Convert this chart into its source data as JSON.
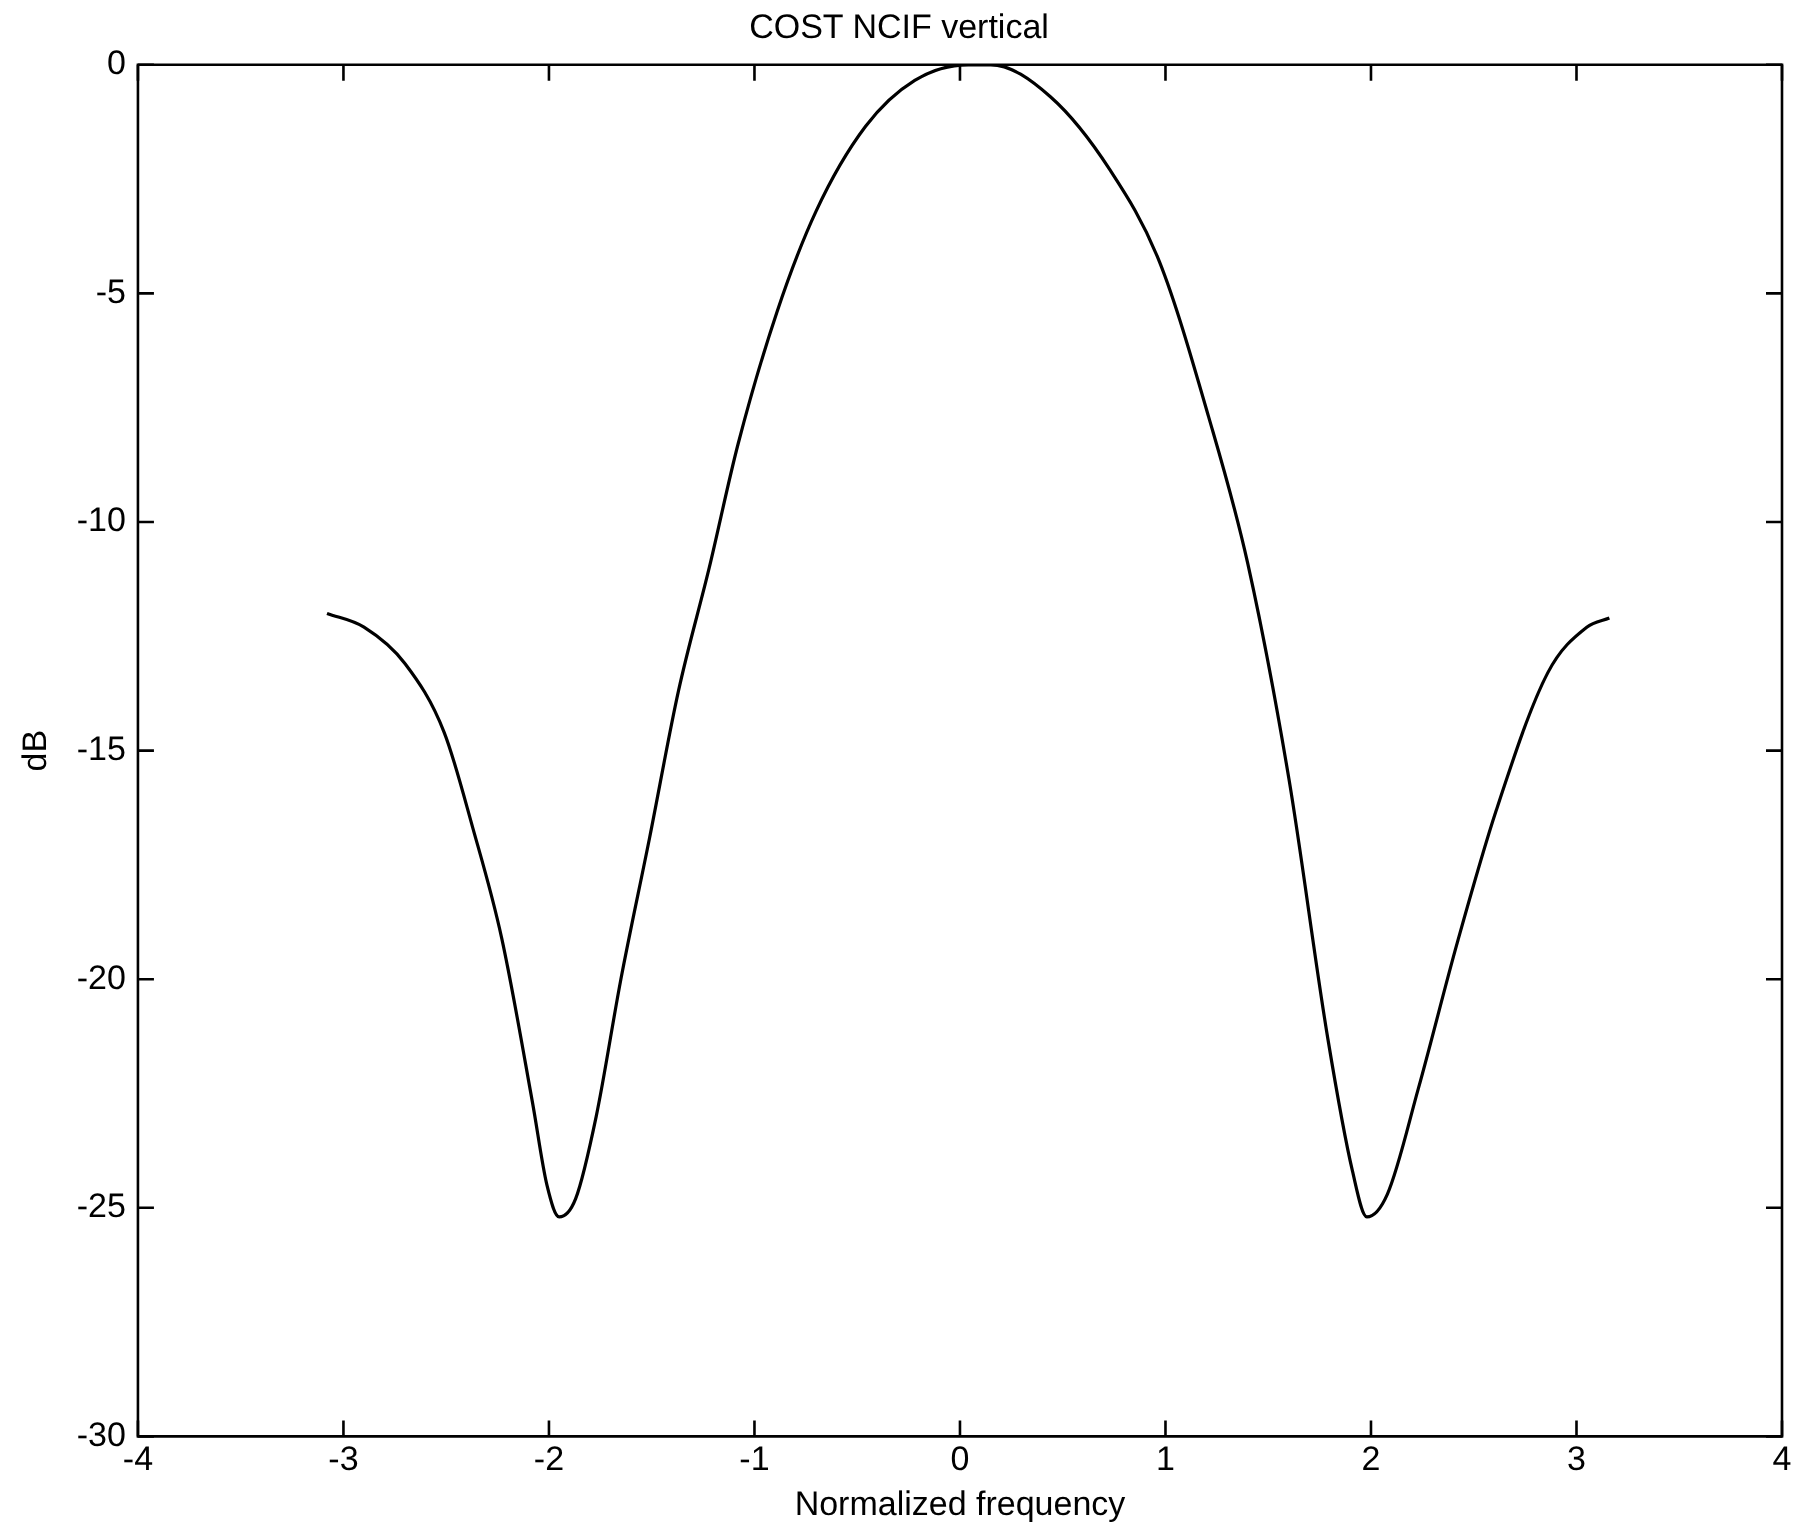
{
  "chart_data": {
    "type": "line",
    "title": "COST NCIF vertical",
    "xlabel": "Normalized frequency",
    "ylabel": "dB",
    "xlim": [
      -4,
      4
    ],
    "xticks": [
      -4,
      -3,
      -2,
      -1,
      0,
      1,
      2,
      3,
      4
    ],
    "ylim": [
      -30,
      0
    ],
    "yticks": [
      -30,
      -25,
      -20,
      -15,
      -10,
      -5,
      0
    ],
    "grid": false,
    "legend": false,
    "marker": "none",
    "line_style": "solid",
    "series": [
      {
        "color": "#000000",
        "x": [
          -3.08,
          -2.9,
          -2.7,
          -2.51,
          -2.37,
          -2.23,
          -2.08,
          -2.01,
          -1.95,
          -1.87,
          -1.77,
          -1.65,
          -1.51,
          -1.37,
          -1.22,
          -1.08,
          -0.89,
          -0.7,
          -0.46,
          -0.22,
          0.04,
          0.15,
          0.44,
          0.73,
          0.97,
          1.21,
          1.4,
          1.6,
          1.79,
          1.91,
          1.98,
          2.08,
          2.23,
          2.42,
          2.61,
          2.86,
          3.05,
          3.16
        ],
        "values": [
          -12.0,
          -12.3,
          -13.1,
          -14.6,
          -16.7,
          -19.1,
          -22.7,
          -24.5,
          -25.2,
          -24.8,
          -23.0,
          -20.0,
          -16.9,
          -13.7,
          -11.0,
          -8.3,
          -5.4,
          -3.2,
          -1.35,
          -0.34,
          0,
          0,
          -0.7,
          -2.3,
          -4.3,
          -7.7,
          -10.9,
          -15.6,
          -21.3,
          -24.2,
          -25.2,
          -24.7,
          -22.4,
          -19.2,
          -16.3,
          -13.3,
          -12.3,
          -12.1
        ]
      }
    ]
  }
}
